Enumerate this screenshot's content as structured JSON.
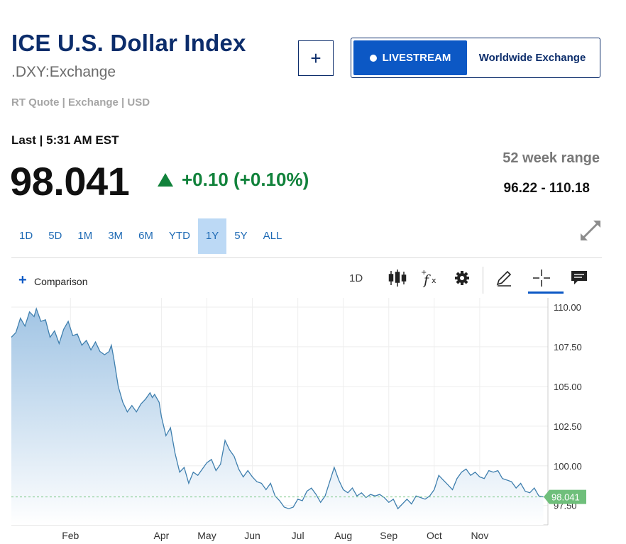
{
  "header": {
    "title": "ICE U.S. Dollar Index",
    "symbol": ".DXY:Exchange",
    "quote_meta": "RT Quote | Exchange | USD",
    "add_button": "+",
    "livestream_label": "LIVESTREAM",
    "exchange_label": "Worldwide Exchange"
  },
  "quote": {
    "last_label": "Last | 5:31 AM EST",
    "price": "98.041",
    "change": "+0.10 (+0.10%)",
    "range_label": "52 week range",
    "range_value": "96.22 - 110.18"
  },
  "tabs": [
    "1D",
    "5D",
    "1M",
    "3M",
    "6M",
    "YTD",
    "1Y",
    "5Y",
    "ALL"
  ],
  "active_tab": "1Y",
  "toolbar": {
    "comparison_plus": "+",
    "comparison_label": "Comparison",
    "interval": "1D",
    "icons": [
      "candlestick-icon",
      "function-icon",
      "gear-icon",
      "pencil-icon",
      "crosshair-icon",
      "comment-icon"
    ]
  },
  "colors": {
    "title": "#0c2d6b",
    "accent": "#0c58c5",
    "positive": "#11823b",
    "line": "#3f7fae",
    "area_top": "#9dc2e3",
    "price_tag": "#6fbf7b"
  },
  "chart_data": {
    "type": "area",
    "x_ticks": [
      "Feb",
      "Apr",
      "May",
      "Jun",
      "Jul",
      "Aug",
      "Sep",
      "Oct",
      "Nov"
    ],
    "x_tick_positions": [
      1.3,
      3.3,
      4.3,
      5.3,
      6.3,
      7.3,
      8.3,
      9.3,
      10.3
    ],
    "y_ticks": [
      "110.00",
      "107.50",
      "105.00",
      "102.50",
      "100.00",
      "97.50"
    ],
    "ylim": [
      96.55,
      110.4
    ],
    "xlim": [
      0,
      11.8
    ],
    "last_value_label": "98.041",
    "last_value": 98.041,
    "points": [
      [
        0.0,
        108.1
      ],
      [
        0.1,
        108.4
      ],
      [
        0.2,
        109.3
      ],
      [
        0.3,
        108.8
      ],
      [
        0.4,
        109.7
      ],
      [
        0.5,
        109.4
      ],
      [
        0.55,
        109.9
      ],
      [
        0.65,
        109.1
      ],
      [
        0.75,
        109.2
      ],
      [
        0.85,
        108.1
      ],
      [
        0.95,
        108.5
      ],
      [
        1.05,
        107.7
      ],
      [
        1.15,
        108.6
      ],
      [
        1.25,
        109.1
      ],
      [
        1.35,
        108.2
      ],
      [
        1.45,
        108.3
      ],
      [
        1.55,
        107.6
      ],
      [
        1.65,
        107.9
      ],
      [
        1.75,
        107.3
      ],
      [
        1.85,
        107.8
      ],
      [
        1.95,
        107.2
      ],
      [
        2.05,
        107.0
      ],
      [
        2.15,
        107.2
      ],
      [
        2.2,
        107.6
      ],
      [
        2.25,
        106.8
      ],
      [
        2.35,
        105.0
      ],
      [
        2.45,
        104.0
      ],
      [
        2.55,
        103.4
      ],
      [
        2.65,
        103.8
      ],
      [
        2.75,
        103.4
      ],
      [
        2.85,
        103.9
      ],
      [
        2.95,
        104.2
      ],
      [
        3.05,
        104.6
      ],
      [
        3.1,
        104.3
      ],
      [
        3.15,
        104.5
      ],
      [
        3.25,
        104.0
      ],
      [
        3.3,
        103.1
      ],
      [
        3.4,
        101.9
      ],
      [
        3.5,
        102.4
      ],
      [
        3.6,
        100.8
      ],
      [
        3.7,
        99.6
      ],
      [
        3.8,
        99.9
      ],
      [
        3.9,
        98.9
      ],
      [
        4.0,
        99.6
      ],
      [
        4.1,
        99.4
      ],
      [
        4.2,
        99.8
      ],
      [
        4.3,
        100.2
      ],
      [
        4.4,
        100.4
      ],
      [
        4.5,
        99.7
      ],
      [
        4.6,
        100.1
      ],
      [
        4.7,
        101.6
      ],
      [
        4.8,
        101.0
      ],
      [
        4.9,
        100.6
      ],
      [
        5.0,
        99.8
      ],
      [
        5.1,
        99.3
      ],
      [
        5.2,
        99.7
      ],
      [
        5.3,
        99.3
      ],
      [
        5.4,
        99.0
      ],
      [
        5.5,
        98.9
      ],
      [
        5.6,
        98.5
      ],
      [
        5.7,
        98.9
      ],
      [
        5.8,
        98.1
      ],
      [
        5.9,
        97.8
      ],
      [
        6.0,
        97.4
      ],
      [
        6.1,
        97.3
      ],
      [
        6.2,
        97.4
      ],
      [
        6.3,
        97.9
      ],
      [
        6.4,
        97.8
      ],
      [
        6.5,
        98.4
      ],
      [
        6.6,
        98.6
      ],
      [
        6.7,
        98.2
      ],
      [
        6.8,
        97.7
      ],
      [
        6.9,
        98.1
      ],
      [
        7.0,
        99.0
      ],
      [
        7.1,
        99.9
      ],
      [
        7.2,
        99.1
      ],
      [
        7.3,
        98.5
      ],
      [
        7.4,
        98.3
      ],
      [
        7.5,
        98.6
      ],
      [
        7.6,
        98.1
      ],
      [
        7.7,
        98.3
      ],
      [
        7.8,
        98.0
      ],
      [
        7.9,
        98.2
      ],
      [
        8.0,
        98.1
      ],
      [
        8.1,
        98.2
      ],
      [
        8.2,
        98.0
      ],
      [
        8.3,
        97.7
      ],
      [
        8.4,
        97.9
      ],
      [
        8.5,
        97.3
      ],
      [
        8.6,
        97.6
      ],
      [
        8.7,
        97.9
      ],
      [
        8.8,
        97.6
      ],
      [
        8.9,
        98.1
      ],
      [
        9.0,
        98.0
      ],
      [
        9.1,
        97.9
      ],
      [
        9.2,
        98.1
      ],
      [
        9.3,
        98.5
      ],
      [
        9.4,
        99.4
      ],
      [
        9.5,
        99.1
      ],
      [
        9.6,
        98.8
      ],
      [
        9.7,
        98.5
      ],
      [
        9.8,
        99.2
      ],
      [
        9.9,
        99.6
      ],
      [
        10.0,
        99.8
      ],
      [
        10.1,
        99.4
      ],
      [
        10.2,
        99.6
      ],
      [
        10.3,
        99.3
      ],
      [
        10.4,
        99.2
      ],
      [
        10.5,
        99.7
      ],
      [
        10.6,
        99.6
      ],
      [
        10.7,
        99.7
      ],
      [
        10.8,
        99.2
      ],
      [
        10.9,
        99.1
      ],
      [
        11.0,
        99.0
      ],
      [
        11.1,
        98.6
      ],
      [
        11.2,
        98.9
      ],
      [
        11.3,
        98.4
      ],
      [
        11.4,
        98.3
      ],
      [
        11.5,
        98.6
      ],
      [
        11.6,
        98.1
      ],
      [
        11.7,
        98.041
      ]
    ]
  }
}
